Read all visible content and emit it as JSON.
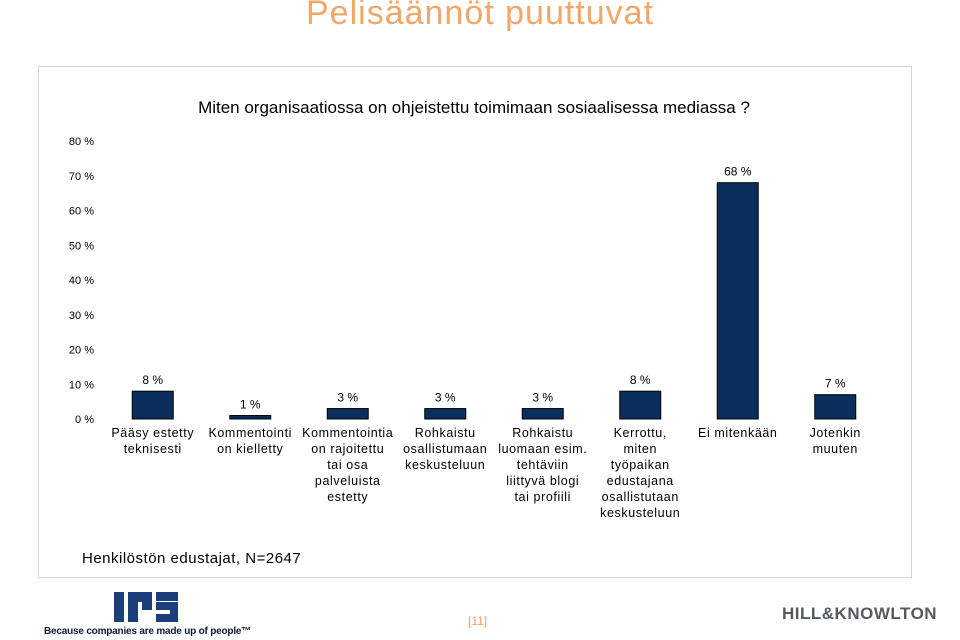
{
  "slide": {
    "title": "Pelisäännöt puuttuvat",
    "footnote": "Henkilöstön edustajat, N=2647",
    "page_number": "[11]",
    "logo_left_tagline": "Because companies are made up of people™",
    "logo_right_text": "HILL&KNOWLTON"
  },
  "colors": {
    "bar": "#0a2f5c",
    "title": "#f2a66a",
    "axis_text": "#000000"
  },
  "chart_data": {
    "type": "bar",
    "title": "Miten organisaatiossa on ohjeistettu toimimaan sosiaalisessa mediassa ?",
    "categories": [
      [
        "Pääsy estetty",
        "teknisesti"
      ],
      [
        "Kommentointi",
        "on kielletty"
      ],
      [
        "Kommentointia",
        "on rajoitettu",
        "tai osa",
        "palveluista",
        "estetty"
      ],
      [
        "Rohkaistu",
        "osallistumaan",
        "keskusteluun"
      ],
      [
        "Rohkaistu",
        "luomaan esim.",
        "tehtäviin",
        "liittyvä blogi",
        "tai profiili"
      ],
      [
        "Kerrottu,",
        "miten",
        "työpaikan",
        "edustajana",
        "osallistutaan",
        "keskusteluun"
      ],
      [
        "Ei mitenkään"
      ],
      [
        "Jotenkin",
        "muuten"
      ]
    ],
    "values": [
      8,
      1,
      3,
      3,
      3,
      8,
      68,
      7
    ],
    "value_labels": [
      "8 %",
      "1 %",
      "3 %",
      "3 %",
      "3 %",
      "8 %",
      "68 %",
      "7 %"
    ],
    "ylim": [
      0,
      80
    ],
    "yticks": [
      0,
      10,
      20,
      30,
      40,
      50,
      60,
      70,
      80
    ],
    "ytick_labels": [
      "0 %",
      "10 %",
      "20 %",
      "30 %",
      "40 %",
      "50 %",
      "60 %",
      "70 %",
      "80 %"
    ],
    "xlabel": "",
    "ylabel": "",
    "grid": false,
    "legend": "none"
  }
}
